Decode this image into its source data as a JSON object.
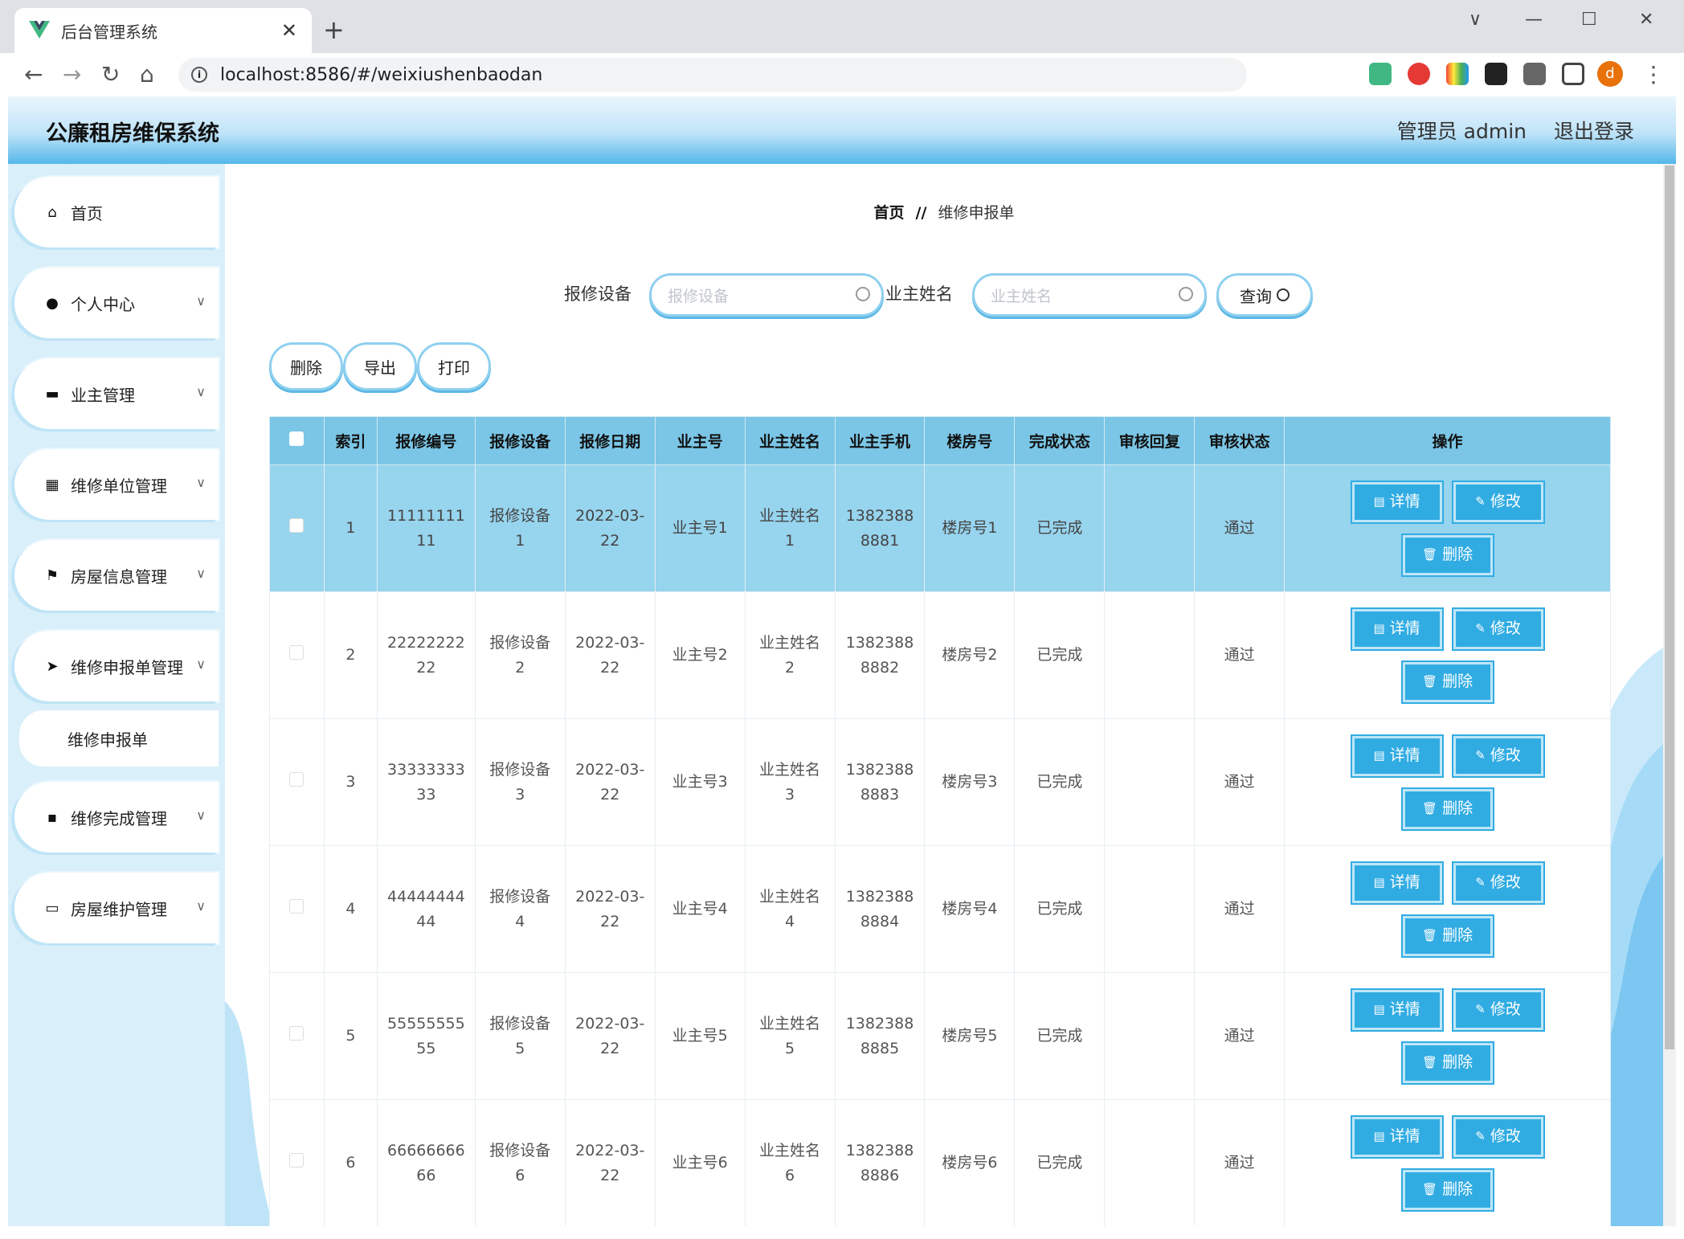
{
  "browser": {
    "tab_title": "后台管理系统",
    "close_glyph": "✕",
    "new_tab_glyph": "+",
    "url": "localhost:8586/#/weixiushenbaodan",
    "avatar_letter": "d",
    "window_controls": [
      "∨",
      "—",
      "☐",
      "✕"
    ]
  },
  "header": {
    "brand": "公廉租房维保系统",
    "user": "管理员 admin",
    "logout": "退出登录"
  },
  "sidebar": {
    "items": [
      {
        "label": "首页",
        "icon": "home-icon",
        "glyph": "⌂"
      },
      {
        "label": "个人中心",
        "icon": "user-icon",
        "glyph": "●"
      },
      {
        "label": "业主管理",
        "icon": "briefcase-icon",
        "glyph": "▬"
      },
      {
        "label": "维修单位管理",
        "icon": "chart-icon",
        "glyph": "▦"
      },
      {
        "label": "房屋信息管理",
        "icon": "flag-icon",
        "glyph": "⚑"
      },
      {
        "label": "维修申报单管理",
        "icon": "send-icon",
        "glyph": "➤"
      },
      {
        "label": "维修完成管理",
        "icon": "grid-icon",
        "glyph": "▪"
      },
      {
        "label": "房屋维护管理",
        "icon": "message-icon",
        "glyph": "▭"
      }
    ],
    "sub_item": "维修申报单"
  },
  "breadcrumb": {
    "home": "首页",
    "sep": "//",
    "current": "维修申报单"
  },
  "search": {
    "label1": "报修设备",
    "placeholder1": "报修设备",
    "label2": "业主姓名",
    "placeholder2": "业主姓名",
    "query": "查询"
  },
  "actions": {
    "delete": "删除",
    "export": "导出",
    "print": "打印"
  },
  "table": {
    "headers": [
      "索引",
      "报修编号",
      "报修设备",
      "报修日期",
      "业主号",
      "业主姓名",
      "业主手机",
      "楼房号",
      "完成状态",
      "审核回复",
      "审核状态",
      "操作"
    ],
    "op_labels": {
      "detail": "详情",
      "edit": "修改",
      "delete": "删除"
    },
    "rows": [
      {
        "idx": "1",
        "code1": "11111111",
        "code2": "11",
        "dev1": "报修设备",
        "dev2": "1",
        "date1": "2022-03-",
        "date2": "22",
        "owner_no": "业主号1",
        "name1": "业主姓名",
        "name2": "1",
        "phone1": "1382388",
        "phone2": "8881",
        "building": "楼房号1",
        "done": "已完成",
        "reply": "",
        "audit": "通过"
      },
      {
        "idx": "2",
        "code1": "22222222",
        "code2": "22",
        "dev1": "报修设备",
        "dev2": "2",
        "date1": "2022-03-",
        "date2": "22",
        "owner_no": "业主号2",
        "name1": "业主姓名",
        "name2": "2",
        "phone1": "1382388",
        "phone2": "8882",
        "building": "楼房号2",
        "done": "已完成",
        "reply": "",
        "audit": "通过"
      },
      {
        "idx": "3",
        "code1": "33333333",
        "code2": "33",
        "dev1": "报修设备",
        "dev2": "3",
        "date1": "2022-03-",
        "date2": "22",
        "owner_no": "业主号3",
        "name1": "业主姓名",
        "name2": "3",
        "phone1": "1382388",
        "phone2": "8883",
        "building": "楼房号3",
        "done": "已完成",
        "reply": "",
        "audit": "通过"
      },
      {
        "idx": "4",
        "code1": "44444444",
        "code2": "44",
        "dev1": "报修设备",
        "dev2": "4",
        "date1": "2022-03-",
        "date2": "22",
        "owner_no": "业主号4",
        "name1": "业主姓名",
        "name2": "4",
        "phone1": "1382388",
        "phone2": "8884",
        "building": "楼房号4",
        "done": "已完成",
        "reply": "",
        "audit": "通过"
      },
      {
        "idx": "5",
        "code1": "55555555",
        "code2": "55",
        "dev1": "报修设备",
        "dev2": "5",
        "date1": "2022-03-",
        "date2": "22",
        "owner_no": "业主号5",
        "name1": "业主姓名",
        "name2": "5",
        "phone1": "1382388",
        "phone2": "8885",
        "building": "楼房号5",
        "done": "已完成",
        "reply": "",
        "audit": "通过"
      },
      {
        "idx": "6",
        "code1": "66666666",
        "code2": "66",
        "dev1": "报修设备",
        "dev2": "6",
        "date1": "2022-03-",
        "date2": "22",
        "owner_no": "业主号6",
        "name1": "业主姓名",
        "name2": "6",
        "phone1": "1382388",
        "phone2": "8886",
        "building": "楼房号6",
        "done": "已完成",
        "reply": "",
        "audit": "通过"
      }
    ]
  }
}
